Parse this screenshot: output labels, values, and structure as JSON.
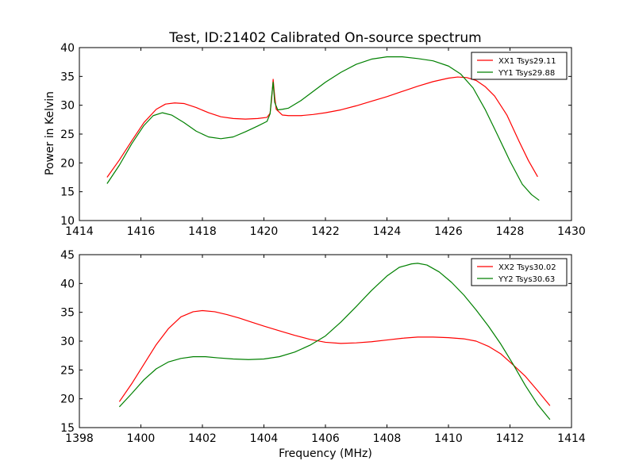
{
  "figure": {
    "title": "Test, ID:21402 Calibrated On-source spectrum",
    "ylabel": "Power in Kelvin",
    "xlabel": "Frequency (MHz)"
  },
  "chart_data": [
    {
      "type": "line",
      "title": "Test, ID:21402 Calibrated On-source spectrum",
      "xlabel": "",
      "ylabel": "Power in Kelvin",
      "xlim": [
        1414,
        1430
      ],
      "ylim": [
        10,
        40
      ],
      "xticks": [
        1414,
        1416,
        1418,
        1420,
        1422,
        1424,
        1426,
        1428,
        1430
      ],
      "yticks": [
        10,
        15,
        20,
        25,
        30,
        35,
        40
      ],
      "legend": "top-right",
      "grid": false,
      "series": [
        {
          "name": "XX1 Tsys29.11",
          "color": "#ff0000",
          "x": [
            1414.9,
            1415.3,
            1415.7,
            1416.1,
            1416.5,
            1416.8,
            1417.1,
            1417.4,
            1417.8,
            1418.2,
            1418.6,
            1419.0,
            1419.4,
            1419.8,
            1420.1,
            1420.2,
            1420.25,
            1420.3,
            1420.35,
            1420.4,
            1420.5,
            1420.6,
            1420.8,
            1421.2,
            1421.6,
            1422.0,
            1422.5,
            1423.0,
            1423.5,
            1424.0,
            1424.5,
            1425.0,
            1425.5,
            1426.0,
            1426.3,
            1426.6,
            1426.9,
            1427.2,
            1427.5,
            1427.9,
            1428.3,
            1428.6,
            1428.9
          ],
          "y": [
            17.5,
            20.5,
            23.8,
            27.0,
            29.3,
            30.2,
            30.4,
            30.3,
            29.6,
            28.7,
            28.0,
            27.7,
            27.6,
            27.7,
            27.9,
            28.6,
            31.0,
            34.5,
            31.5,
            29.3,
            28.8,
            28.3,
            28.2,
            28.2,
            28.4,
            28.7,
            29.2,
            29.9,
            30.7,
            31.5,
            32.4,
            33.3,
            34.1,
            34.7,
            34.9,
            34.8,
            34.3,
            33.2,
            31.6,
            28.3,
            23.7,
            20.4,
            17.6
          ]
        },
        {
          "name": "YY1 Tsys29.88",
          "color": "#008000",
          "x": [
            1414.9,
            1415.3,
            1415.7,
            1416.1,
            1416.4,
            1416.7,
            1417.0,
            1417.4,
            1417.8,
            1418.2,
            1418.6,
            1419.0,
            1419.4,
            1419.8,
            1420.1,
            1420.2,
            1420.25,
            1420.3,
            1420.35,
            1420.45,
            1420.6,
            1420.8,
            1421.2,
            1421.6,
            1422.0,
            1422.5,
            1423.0,
            1423.5,
            1424.0,
            1424.5,
            1425.0,
            1425.5,
            1426.0,
            1426.4,
            1426.8,
            1427.2,
            1427.6,
            1428.0,
            1428.4,
            1428.7,
            1428.95
          ],
          "y": [
            16.4,
            19.6,
            23.3,
            26.5,
            28.2,
            28.7,
            28.3,
            27.0,
            25.5,
            24.5,
            24.2,
            24.5,
            25.4,
            26.4,
            27.2,
            28.5,
            31.5,
            34.0,
            30.5,
            29.2,
            29.3,
            29.5,
            30.8,
            32.4,
            34.0,
            35.7,
            37.1,
            38.0,
            38.4,
            38.4,
            38.1,
            37.7,
            36.8,
            35.4,
            33.0,
            29.2,
            24.8,
            20.3,
            16.3,
            14.5,
            13.5
          ]
        }
      ]
    },
    {
      "type": "line",
      "title": "",
      "xlabel": "Frequency (MHz)",
      "ylabel": "",
      "xlim": [
        1398,
        1414
      ],
      "ylim": [
        15,
        45
      ],
      "xticks": [
        1398,
        1400,
        1402,
        1404,
        1406,
        1408,
        1410,
        1412,
        1414
      ],
      "yticks": [
        15,
        20,
        25,
        30,
        35,
        40,
        45
      ],
      "legend": "top-right",
      "grid": false,
      "series": [
        {
          "name": "XX2 Tsys30.02",
          "color": "#ff0000",
          "x": [
            1399.3,
            1399.7,
            1400.1,
            1400.5,
            1400.9,
            1401.3,
            1401.7,
            1402.0,
            1402.4,
            1402.8,
            1403.2,
            1403.6,
            1404.0,
            1404.5,
            1405.0,
            1405.5,
            1406.0,
            1406.5,
            1407.0,
            1407.5,
            1408.0,
            1408.5,
            1409.0,
            1409.5,
            1410.0,
            1410.5,
            1410.9,
            1411.3,
            1411.7,
            1412.1,
            1412.5,
            1412.9,
            1413.3
          ],
          "y": [
            19.5,
            22.6,
            26.0,
            29.4,
            32.2,
            34.2,
            35.1,
            35.3,
            35.1,
            34.6,
            34.0,
            33.3,
            32.6,
            31.8,
            31.0,
            30.3,
            29.8,
            29.6,
            29.7,
            29.9,
            30.2,
            30.5,
            30.7,
            30.7,
            30.6,
            30.4,
            30.0,
            29.1,
            27.8,
            25.9,
            23.9,
            21.4,
            18.8
          ]
        },
        {
          "name": "YY2 Tsys30.63",
          "color": "#008000",
          "x": [
            1399.3,
            1399.7,
            1400.1,
            1400.5,
            1400.9,
            1401.3,
            1401.7,
            1402.1,
            1402.5,
            1403.0,
            1403.5,
            1404.0,
            1404.5,
            1405.0,
            1405.5,
            1406.0,
            1406.5,
            1407.0,
            1407.5,
            1408.0,
            1408.4,
            1408.8,
            1409.0,
            1409.3,
            1409.7,
            1410.1,
            1410.5,
            1410.9,
            1411.3,
            1411.7,
            1412.1,
            1412.5,
            1412.9,
            1413.3
          ],
          "y": [
            18.6,
            20.9,
            23.3,
            25.2,
            26.4,
            27.0,
            27.3,
            27.3,
            27.1,
            26.9,
            26.8,
            26.9,
            27.3,
            28.1,
            29.3,
            30.9,
            33.3,
            36.0,
            38.8,
            41.3,
            42.8,
            43.4,
            43.5,
            43.2,
            42.0,
            40.2,
            38.0,
            35.4,
            32.6,
            29.5,
            26.0,
            22.3,
            19.0,
            16.4
          ]
        }
      ]
    }
  ]
}
